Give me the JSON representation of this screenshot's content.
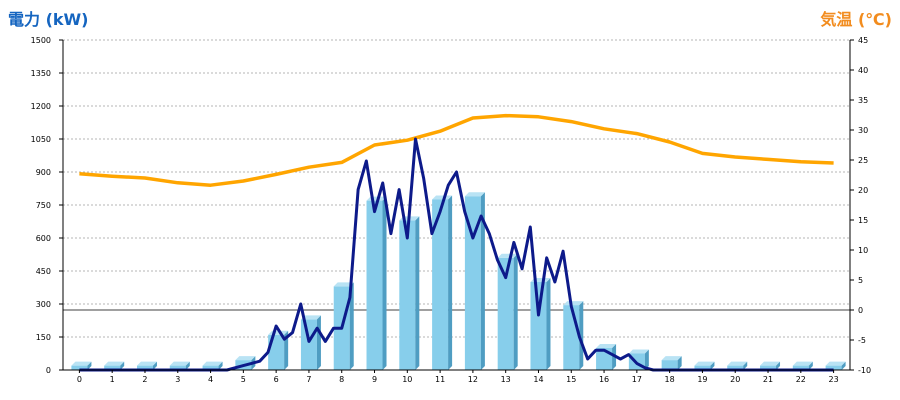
{
  "chart_data": {
    "type": "bar",
    "left_axis_title": "電力 (kW)",
    "right_axis_title": "気温 (℃)",
    "ylim": [
      0,
      1500
    ],
    "y2lim": [
      -10,
      45
    ],
    "y_ticks": [
      "0",
      "150",
      "300",
      "450",
      "600",
      "750",
      "900",
      "1050",
      "1200",
      "1350",
      "1500"
    ],
    "y2_ticks": [
      "-10",
      "-5",
      "0",
      "5",
      "10",
      "15",
      "20",
      "25",
      "30",
      "35",
      "40",
      "45"
    ],
    "categories": [
      "0",
      "1",
      "2",
      "3",
      "4",
      "5",
      "6",
      "7",
      "8",
      "9",
      "10",
      "11",
      "12",
      "13",
      "14",
      "15",
      "16",
      "17",
      "18",
      "19",
      "20",
      "21",
      "22",
      "23"
    ],
    "grid": true,
    "series": [
      {
        "type": "bar",
        "color": "#87ceeb",
        "values": [
          20,
          20,
          20,
          20,
          20,
          45,
          160,
          230,
          380,
          770,
          680,
          775,
          790,
          510,
          400,
          295,
          100,
          75,
          45,
          20,
          20,
          20,
          20,
          20
        ]
      },
      {
        "type": "line",
        "axis": "left",
        "color": "#0d1a8a",
        "x": [
          0,
          0.5,
          1,
          1.5,
          2,
          2.5,
          3,
          3.5,
          4,
          4.5,
          5,
          5.25,
          5.5,
          5.75,
          6,
          6.25,
          6.5,
          6.75,
          7,
          7.25,
          7.5,
          7.75,
          8,
          8.25,
          8.5,
          8.75,
          9,
          9.25,
          9.5,
          9.75,
          10,
          10.25,
          10.5,
          10.75,
          11,
          11.25,
          11.5,
          11.75,
          12,
          12.25,
          12.5,
          12.75,
          13,
          13.25,
          13.5,
          13.75,
          14,
          14.25,
          14.5,
          14.75,
          15,
          15.25,
          15.5,
          15.75,
          16,
          16.25,
          16.5,
          16.75,
          17,
          17.25,
          17.5,
          17.75,
          18,
          18.25,
          18.5,
          18.75,
          19,
          19.5,
          20,
          20.5,
          21,
          21.5,
          22,
          22.5,
          23
        ],
        "values": [
          0,
          0,
          0,
          0,
          0,
          0,
          0,
          0,
          0,
          0,
          20,
          30,
          40,
          80,
          200,
          140,
          170,
          300,
          130,
          190,
          130,
          190,
          190,
          330,
          820,
          950,
          720,
          850,
          620,
          820,
          600,
          1050,
          870,
          620,
          720,
          840,
          900,
          720,
          600,
          700,
          620,
          500,
          420,
          580,
          460,
          650,
          250,
          510,
          400,
          540,
          290,
          150,
          50,
          90,
          90,
          70,
          50,
          70,
          30,
          10,
          0,
          0,
          0,
          0,
          0,
          0,
          0,
          0,
          0,
          0,
          0,
          0,
          0,
          0,
          0
        ]
      },
      {
        "type": "line",
        "axis": "right",
        "color": "#ffa500",
        "values": [
          22.7,
          22.3,
          22.0,
          21.2,
          20.8,
          21.5,
          22.6,
          23.8,
          24.6,
          27.5,
          28.3,
          29.8,
          32.0,
          32.4,
          32.2,
          31.4,
          30.2,
          29.4,
          28.0,
          26.1,
          25.5,
          25.1,
          24.7,
          24.5
        ]
      }
    ]
  }
}
